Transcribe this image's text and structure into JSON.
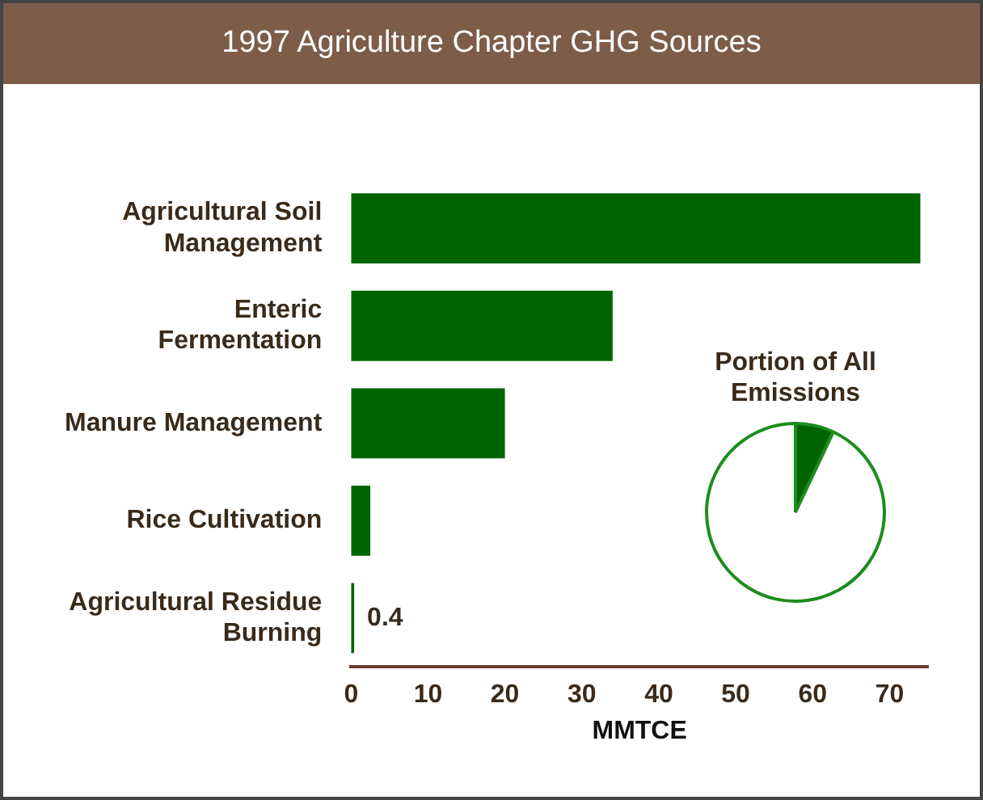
{
  "chart_data": [
    {
      "type": "bar",
      "title": "1997 Agriculture Chapter GHG Sources",
      "orientation": "horizontal",
      "categories": [
        "Agricultural Soil Management",
        "Enteric Fermentation",
        "Manure Management",
        "Rice Cultivation",
        "Agricultural Residue Burning"
      ],
      "values": [
        74,
        34,
        20,
        2.5,
        0.4
      ],
      "color": "#006400",
      "value_labels": [
        null,
        null,
        null,
        null,
        "0.4"
      ],
      "xlim": [
        0,
        75
      ],
      "xticks": [
        0,
        10,
        20,
        30,
        40,
        50,
        60,
        70
      ],
      "xlabel": "MMTCE",
      "grid": false,
      "legend": false
    },
    {
      "type": "pie",
      "title": "Portion of All Emissions",
      "categories": [
        null,
        null
      ],
      "values": [
        7,
        93
      ],
      "colors": [
        "#006400",
        "#ffffff"
      ],
      "legend": false
    }
  ]
}
